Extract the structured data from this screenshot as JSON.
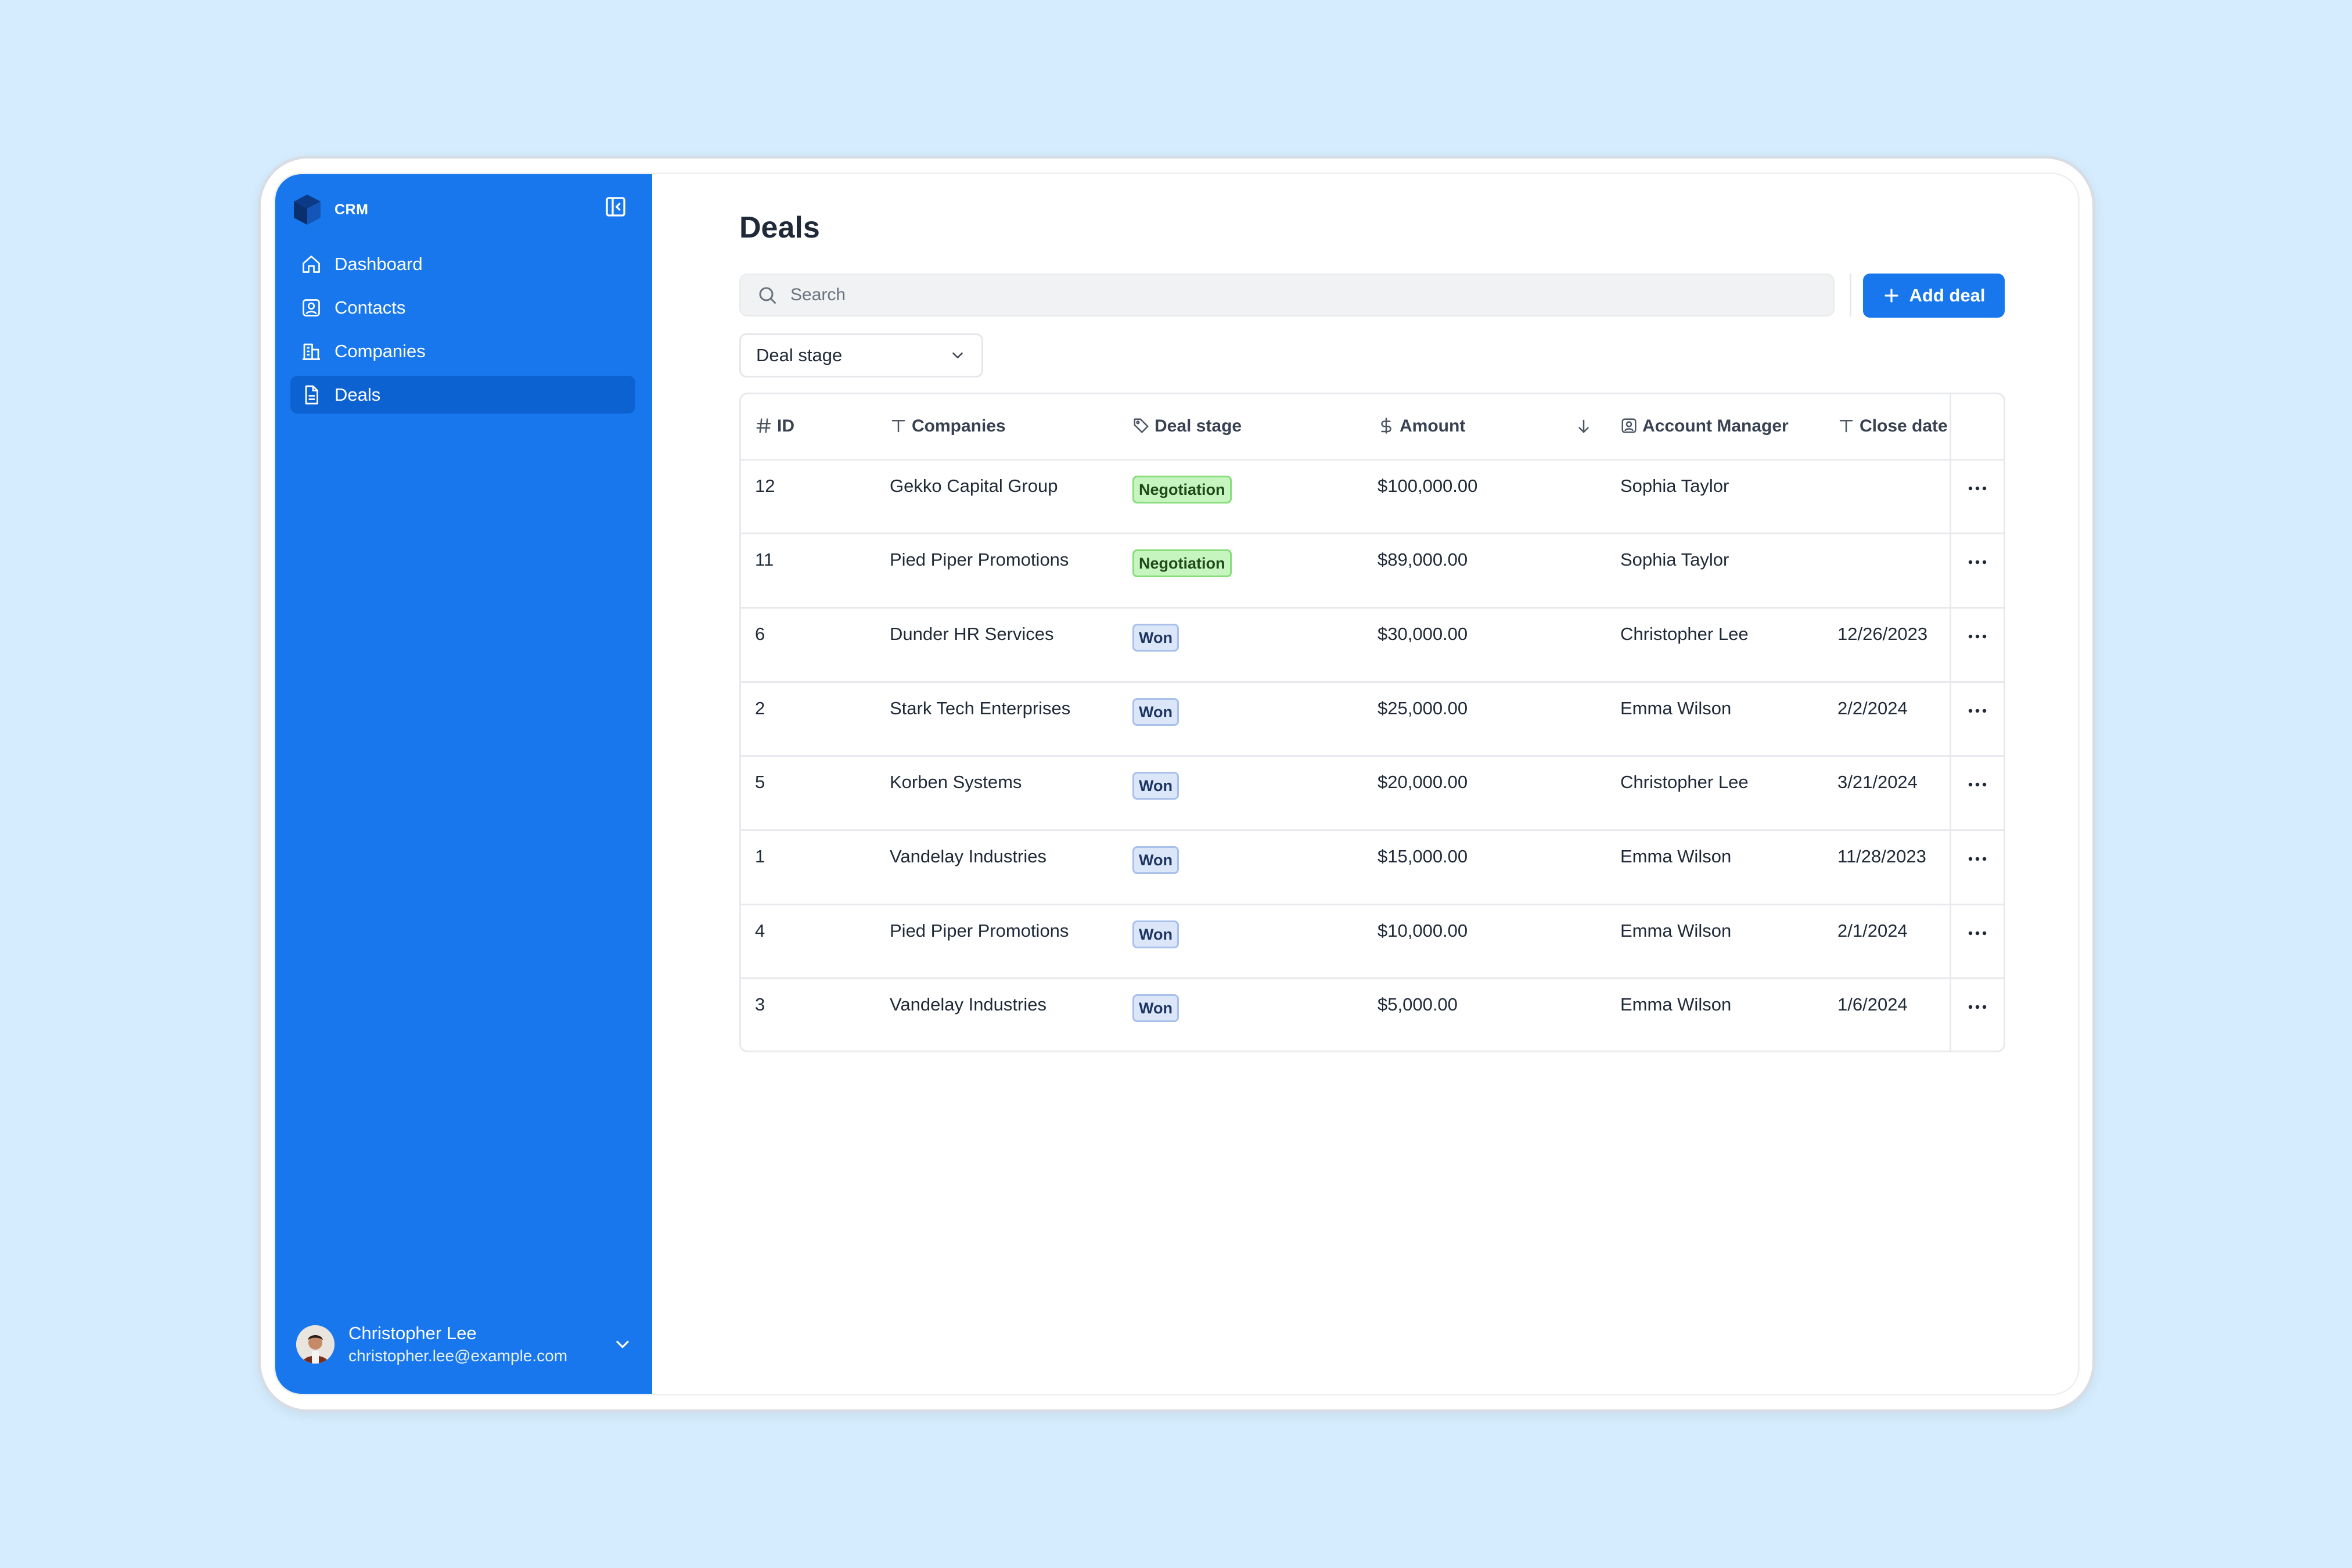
{
  "app": {
    "name": "CRM"
  },
  "sidebar": {
    "items": [
      {
        "label": "Dashboard",
        "icon": "home-icon"
      },
      {
        "label": "Contacts",
        "icon": "contact-icon"
      },
      {
        "label": "Companies",
        "icon": "building-icon"
      },
      {
        "label": "Deals",
        "icon": "document-icon",
        "active": true
      }
    ],
    "user": {
      "name": "Christopher Lee",
      "email": "christopher.lee@example.com"
    }
  },
  "page": {
    "title": "Deals",
    "search_placeholder": "Search",
    "add_button": "Add deal",
    "filter_label": "Deal stage"
  },
  "table": {
    "columns": [
      {
        "label": "ID",
        "icon": "hash-icon"
      },
      {
        "label": "Companies",
        "icon": "text-icon"
      },
      {
        "label": "Deal stage",
        "icon": "tag-icon"
      },
      {
        "label": "Amount",
        "icon": "dollar-icon",
        "sort": "descending"
      },
      {
        "label": "Account Manager",
        "icon": "user-square-icon"
      },
      {
        "label": "Close date",
        "icon": "text-icon"
      }
    ],
    "rows": [
      {
        "id": "12",
        "company": "Gekko Capital Group",
        "stage": "Negotiation",
        "amount": "$100,000.00",
        "manager": "Sophia Taylor",
        "close": ""
      },
      {
        "id": "11",
        "company": "Pied Piper Promotions",
        "stage": "Negotiation",
        "amount": "$89,000.00",
        "manager": "Sophia Taylor",
        "close": ""
      },
      {
        "id": "6",
        "company": "Dunder HR Services",
        "stage": "Won",
        "amount": "$30,000.00",
        "manager": "Christopher Lee",
        "close": "12/26/2023"
      },
      {
        "id": "2",
        "company": "Stark Tech Enterprises",
        "stage": "Won",
        "amount": "$25,000.00",
        "manager": "Emma Wilson",
        "close": "2/2/2024"
      },
      {
        "id": "5",
        "company": "Korben Systems",
        "stage": "Won",
        "amount": "$20,000.00",
        "manager": "Christopher Lee",
        "close": "3/21/2024"
      },
      {
        "id": "1",
        "company": "Vandelay Industries",
        "stage": "Won",
        "amount": "$15,000.00",
        "manager": "Emma Wilson",
        "close": "11/28/2023"
      },
      {
        "id": "4",
        "company": "Pied Piper Promotions",
        "stage": "Won",
        "amount": "$10,000.00",
        "manager": "Emma Wilson",
        "close": "2/1/2024"
      },
      {
        "id": "3",
        "company": "Vandelay Industries",
        "stage": "Won",
        "amount": "$5,000.00",
        "manager": "Emma Wilson",
        "close": "1/6/2024"
      }
    ]
  },
  "colors": {
    "background": "#d4ecfd",
    "sidebar": "#1877ec",
    "sidebar_active": "#0d62d2",
    "primary": "#1877ec",
    "badge_negotiation_bg": "#c7f5c0",
    "badge_won_bg": "#dbe6f9"
  }
}
